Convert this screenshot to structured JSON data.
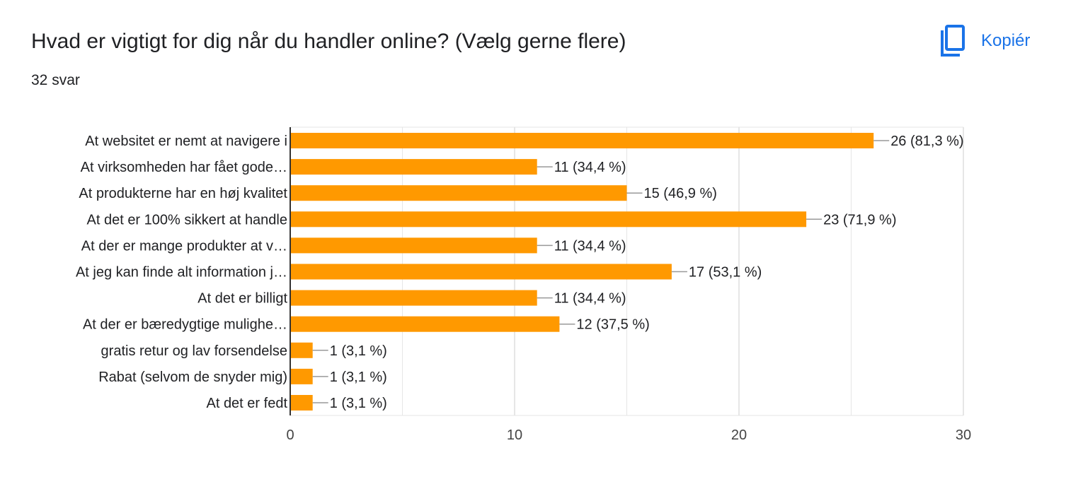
{
  "header": {
    "title": "Hvad er vigtigt for dig når du handler online? (Vælg gerne flere)",
    "response_count": "32 svar",
    "copy_label": "Kopiér",
    "copy_icon": "copy-icon"
  },
  "colors": {
    "bar": "#ff9900",
    "accent": "#1a73e8",
    "grid": "#e6e6e6",
    "axis": "#333333",
    "text": "#202124"
  },
  "chart_data": {
    "type": "bar",
    "orientation": "horizontal",
    "categories": [
      "At websitet er nemt at navigere i",
      "At virksomheden har fået gode…",
      "At produkterne har en høj kvalitet",
      "At det er 100% sikkert at handle",
      "At der er mange produkter at v…",
      "At jeg kan finde alt information j…",
      "At det er billigt",
      "At der er bæredygtige mulighe…",
      "gratis retur og lav forsendelse",
      "Rabat (selvom de snyder mig)",
      "At det er fedt"
    ],
    "values": [
      26,
      11,
      15,
      23,
      11,
      17,
      11,
      12,
      1,
      1,
      1
    ],
    "data_labels": [
      "26 (81,3 %)",
      "11 (34,4 %)",
      "15 (46,9 %)",
      "23 (71,9 %)",
      "11 (34,4 %)",
      "17 (53,1 %)",
      "11 (34,4 %)",
      "12 (37,5 %)",
      "1 (3,1 %)",
      "1 (3,1 %)",
      "1 (3,1 %)"
    ],
    "xlim": [
      0,
      30
    ],
    "xticks": [
      0,
      10,
      20,
      30
    ],
    "grid": true,
    "title": "",
    "xlabel": "",
    "ylabel": ""
  }
}
